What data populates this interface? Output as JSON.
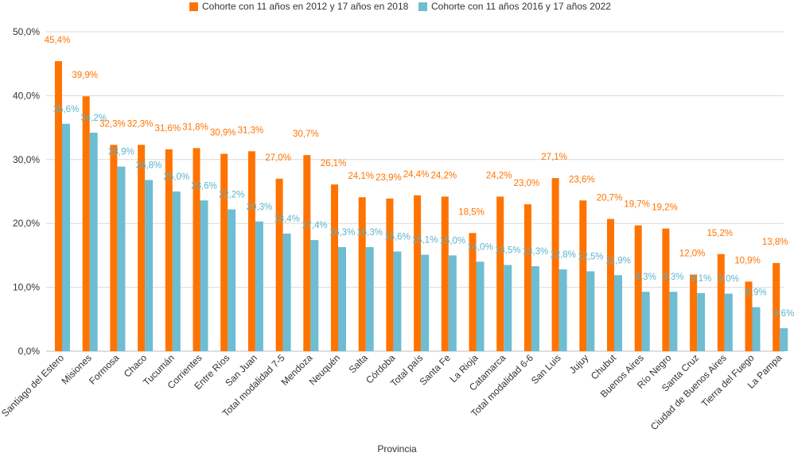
{
  "chart_data": {
    "type": "bar",
    "title": "",
    "xlabel": "Provincia",
    "ylabel": "",
    "ylim": [
      0,
      50
    ],
    "yticks": [
      "0,0%",
      "10,0%",
      "20,0%",
      "30,0%",
      "40,0%",
      "50,0%"
    ],
    "grid": true,
    "legend_position": "top-center",
    "categories": [
      "Santiago del Estero",
      "Misiones",
      "Formosa",
      "Chaco",
      "Tucumán",
      "Corrientes",
      "Entre Ríos",
      "San Juan",
      "Total modalidad 7-5",
      "Mendoza",
      "Neuquén",
      "Salta",
      "Córdoba",
      "Total país",
      "Santa Fe",
      "La Rioja",
      "Catamarca",
      "Total modalidad 6-6",
      "San Luis",
      "Jujuy",
      "Chubut",
      "Buenos Aires",
      "Río Negro",
      "Santa Cruz",
      "Ciudad de Buenos Aires",
      "Tierra del Fuego",
      "La Pampa"
    ],
    "series": [
      {
        "name": "Cohorte con 11 años en 2012 y 17 años en 2018",
        "color": "#FF7300",
        "values": [
          45.4,
          39.9,
          32.3,
          32.3,
          31.6,
          31.8,
          30.9,
          31.3,
          27.0,
          30.7,
          26.1,
          24.1,
          23.9,
          24.4,
          24.2,
          18.5,
          24.2,
          23.0,
          27.1,
          23.6,
          20.7,
          19.7,
          19.2,
          12.0,
          15.2,
          10.9,
          13.8
        ],
        "labels": [
          "45,4%",
          "39,9%",
          "32,3%",
          "32,3%",
          "31,6%",
          "31,8%",
          "30,9%",
          "31,3%",
          "27,0%",
          "30,7%",
          "26,1%",
          "24,1%",
          "23,9%",
          "24,4%",
          "24,2%",
          "18,5%",
          "24,2%",
          "23,0%",
          "27,1%",
          "23,6%",
          "20,7%",
          "19,7%",
          "19,2%",
          "12,0%",
          "15,2%",
          "10,9%",
          "13,8%"
        ]
      },
      {
        "name": "Cohorte con 11 años 2016 y 17 años 2022",
        "color": "#6EBDD2",
        "values": [
          35.6,
          34.2,
          28.9,
          26.8,
          25.0,
          23.6,
          22.2,
          20.3,
          18.4,
          17.4,
          16.3,
          16.3,
          15.6,
          15.1,
          15.0,
          14.0,
          13.5,
          13.3,
          12.8,
          12.5,
          11.9,
          9.3,
          9.3,
          9.1,
          9.0,
          6.9,
          3.6
        ],
        "labels": [
          "35,6%",
          "34,2%",
          "28,9%",
          "26,8%",
          "25,0%",
          "23,6%",
          "22,2%",
          "20,3%",
          "18,4%",
          "17,4%",
          "16,3%",
          "16,3%",
          "15,6%",
          "15,1%",
          "15,0%",
          "14,0%",
          "13,5%",
          "13,3%",
          "12,8%",
          "12,5%",
          "11,9%",
          "9,3%",
          "9,3%",
          "9,1%",
          "9,0%",
          "6,9%",
          "3,6%"
        ]
      }
    ]
  }
}
